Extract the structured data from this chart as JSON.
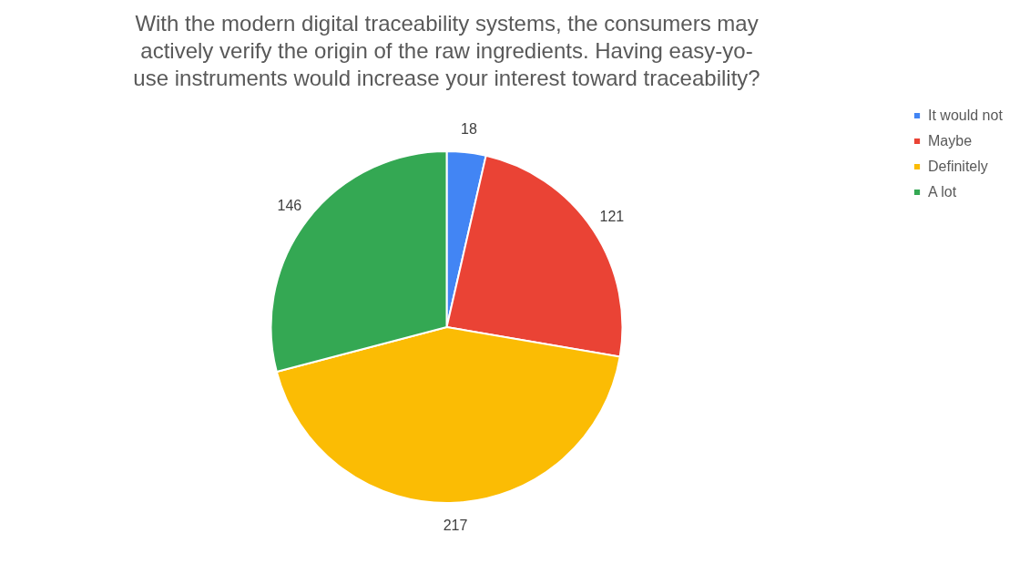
{
  "chart_data": {
    "type": "pie",
    "title": "With the modern digital traceability systems, the consumers may actively verify the origin of the raw ingredients. Having easy-yo-use instruments would increase your interest toward traceability?",
    "categories": [
      "It would not",
      "Maybe",
      "Definitely",
      "A lot"
    ],
    "values": [
      18,
      121,
      217,
      146
    ],
    "colors": [
      "#4285f4",
      "#ea4335",
      "#fbbc04",
      "#34a853"
    ],
    "data_labels": true,
    "legend": "right"
  }
}
